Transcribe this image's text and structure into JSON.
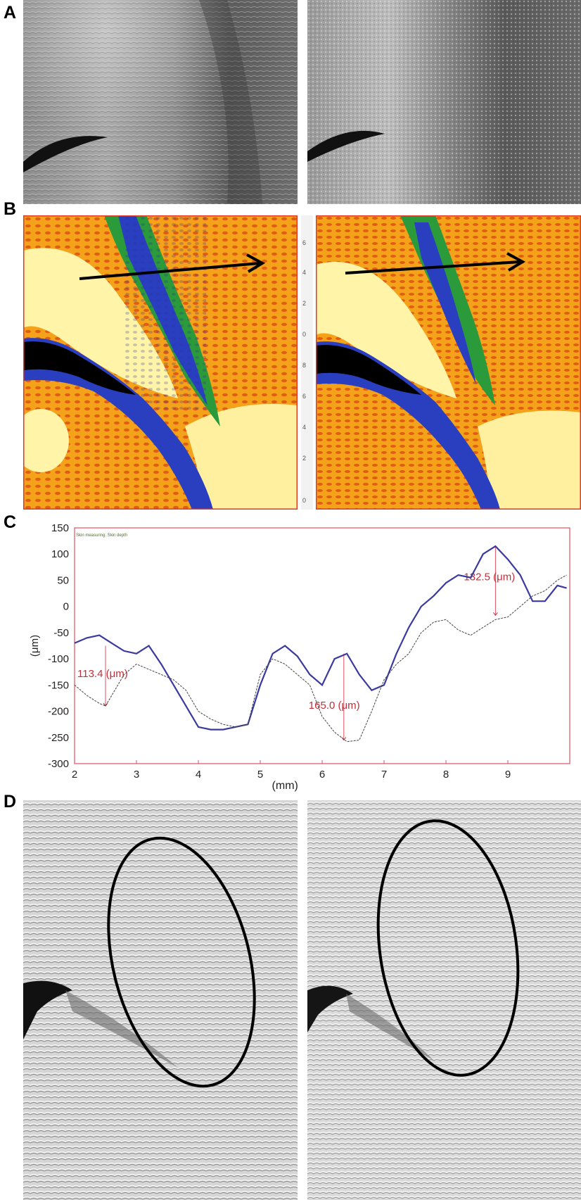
{
  "figure": {
    "panel_labels": {
      "a": "A",
      "b": "B",
      "c": "C",
      "d": "D"
    },
    "scale_ticks": [
      "6",
      "4",
      "2",
      "0",
      "8",
      "6",
      "4",
      "2",
      "0"
    ]
  },
  "chart_data": {
    "type": "line",
    "legend_note": "Skin measuring: Skin depth",
    "xlabel": "(mm)",
    "ylabel": "(μm)",
    "xlim": [
      2,
      10
    ],
    "ylim": [
      -300,
      150
    ],
    "x_ticks": [
      2,
      3,
      4,
      5,
      6,
      7,
      8,
      9
    ],
    "y_ticks": [
      150,
      100,
      50,
      0,
      -50,
      -100,
      -150,
      -200,
      -250,
      -300
    ],
    "grid": false,
    "series": [
      {
        "color": "#3a3aa0",
        "x": [
          2.0,
          2.2,
          2.4,
          2.6,
          2.8,
          3.0,
          3.2,
          3.4,
          3.6,
          3.8,
          4.0,
          4.2,
          4.4,
          4.6,
          4.8,
          5.0,
          5.2,
          5.4,
          5.6,
          5.8,
          6.0,
          6.2,
          6.4,
          6.6,
          6.8,
          7.0,
          7.2,
          7.4,
          7.6,
          7.8,
          8.0,
          8.2,
          8.4,
          8.6,
          8.8,
          9.0,
          9.2,
          9.4,
          9.6,
          9.8,
          9.95
        ],
        "values": [
          -70,
          -60,
          -55,
          -70,
          -85,
          -90,
          -75,
          -110,
          -150,
          -190,
          -230,
          -235,
          -235,
          -230,
          -225,
          -150,
          -90,
          -75,
          -95,
          -130,
          -150,
          -100,
          -90,
          -130,
          -160,
          -150,
          -90,
          -40,
          0,
          20,
          45,
          60,
          55,
          100,
          115,
          90,
          60,
          10,
          10,
          40,
          35
        ]
      },
      {
        "color": "#444444",
        "x": [
          2.0,
          2.2,
          2.4,
          2.5,
          2.6,
          2.8,
          3.0,
          3.2,
          3.4,
          3.6,
          3.8,
          4.0,
          4.2,
          4.4,
          4.6,
          4.8,
          5.0,
          5.2,
          5.4,
          5.6,
          5.8,
          6.0,
          6.2,
          6.4,
          6.6,
          6.8,
          7.0,
          7.2,
          7.4,
          7.6,
          7.8,
          8.0,
          8.2,
          8.4,
          8.6,
          8.8,
          9.0,
          9.2,
          9.4,
          9.6,
          9.8,
          9.95
        ],
        "values": [
          -150,
          -170,
          -185,
          -190,
          -170,
          -130,
          -110,
          -120,
          -130,
          -140,
          -160,
          -200,
          -215,
          -225,
          -230,
          -225,
          -130,
          -100,
          -110,
          -130,
          -150,
          -210,
          -240,
          -258,
          -255,
          -200,
          -140,
          -110,
          -90,
          -50,
          -30,
          -25,
          -45,
          -55,
          -40,
          -25,
          -20,
          0,
          20,
          30,
          50,
          60
        ]
      }
    ],
    "annotations": [
      {
        "label": "113.4 (μm)",
        "x": 2.5,
        "y_top": -75,
        "y_bottom": -190
      },
      {
        "label": "165.0 (μm)",
        "x": 6.35,
        "y_top": -90,
        "y_bottom": -255
      },
      {
        "label": "132.5 (μm)",
        "x": 8.8,
        "y_top": 115,
        "y_bottom": -17
      }
    ]
  }
}
